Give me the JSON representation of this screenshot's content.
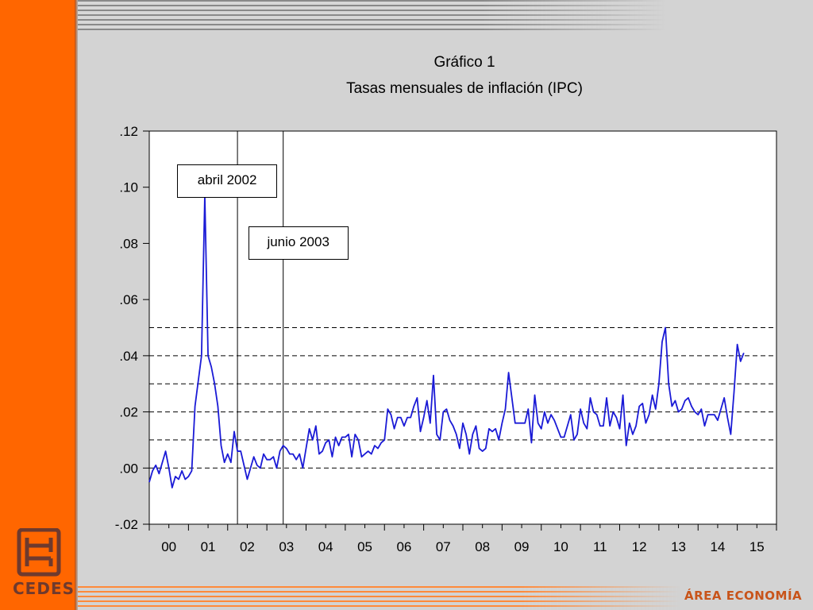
{
  "slide": {
    "brand_label": "ÁREA ECONOMÍA",
    "logo_label": "CEDES",
    "accent_color": "#ff6600"
  },
  "chart_data": {
    "type": "line",
    "title": "Gráfico 1",
    "subtitle": "Tasas mensuales de inflación (IPC)",
    "xlabel": "",
    "ylabel": "",
    "x_start": "2000-01",
    "x_end": "2016-01",
    "x_tick_labels": [
      "00",
      "01",
      "02",
      "03",
      "04",
      "05",
      "06",
      "07",
      "08",
      "09",
      "10",
      "11",
      "12",
      "13",
      "14",
      "15"
    ],
    "y_tick_labels": [
      ".12",
      ".10",
      ".08",
      ".06",
      ".04",
      ".02",
      ".00",
      "-.02"
    ],
    "y_ticks": [
      0.12,
      0.1,
      0.08,
      0.06,
      0.04,
      0.02,
      0.0,
      -0.02
    ],
    "ylim": [
      -0.02,
      0.12
    ],
    "line_color": "#1a1ad6",
    "reference_lines_y": [
      0.0,
      0.01,
      0.02,
      0.03,
      0.04,
      0.05
    ],
    "vertical_markers": [
      {
        "date": "2002-04",
        "label": "abril 2002"
      },
      {
        "date": "2003-06",
        "label": "junio 2003"
      }
    ],
    "series": [
      {
        "values": [
          -0.005,
          -0.001,
          0.001,
          -0.002,
          0.002,
          0.006,
          0.0,
          -0.007,
          -0.003,
          -0.004,
          -0.001,
          -0.004,
          -0.003,
          -0.001,
          0.022,
          0.031,
          0.04,
          0.097,
          0.04,
          0.036,
          0.03,
          0.022,
          0.008,
          0.002,
          0.005,
          0.002,
          0.013,
          0.006,
          0.006,
          0.001,
          -0.004,
          0.0,
          0.004,
          0.001,
          0.0,
          0.005,
          0.003,
          0.003,
          0.004,
          0.0,
          0.006,
          0.008,
          0.007,
          0.005,
          0.005,
          0.003,
          0.005,
          0.0,
          0.007,
          0.014,
          0.01,
          0.015,
          0.005,
          0.006,
          0.009,
          0.01,
          0.004,
          0.011,
          0.008,
          0.011,
          0.011,
          0.012,
          0.004,
          0.012,
          0.01,
          0.004,
          0.005,
          0.006,
          0.005,
          0.008,
          0.007,
          0.009,
          0.01,
          0.021,
          0.019,
          0.014,
          0.018,
          0.018,
          0.015,
          0.018,
          0.018,
          0.022,
          0.025,
          0.013,
          0.018,
          0.024,
          0.016,
          0.033,
          0.012,
          0.01,
          0.02,
          0.021,
          0.017,
          0.015,
          0.012,
          0.007,
          0.016,
          0.012,
          0.005,
          0.012,
          0.015,
          0.007,
          0.006,
          0.007,
          0.014,
          0.013,
          0.014,
          0.01,
          0.016,
          0.021,
          0.034,
          0.025,
          0.016,
          0.016,
          0.016,
          0.016,
          0.021,
          0.009,
          0.026,
          0.016,
          0.014,
          0.02,
          0.016,
          0.019,
          0.017,
          0.014,
          0.011,
          0.011,
          0.015,
          0.019,
          0.01,
          0.012,
          0.021,
          0.016,
          0.014,
          0.025,
          0.02,
          0.019,
          0.015,
          0.015,
          0.025,
          0.015,
          0.02,
          0.018,
          0.014,
          0.026,
          0.008,
          0.016,
          0.012,
          0.015,
          0.022,
          0.023,
          0.016,
          0.019,
          0.026,
          0.021,
          0.03,
          0.045,
          0.05,
          0.03,
          0.022,
          0.024,
          0.02,
          0.021,
          0.024,
          0.025,
          0.022,
          0.02,
          0.019,
          0.021,
          0.015,
          0.019,
          0.019,
          0.019,
          0.017,
          0.021,
          0.025,
          0.018,
          0.012,
          0.027,
          0.044,
          0.038,
          0.041
        ]
      }
    ]
  }
}
